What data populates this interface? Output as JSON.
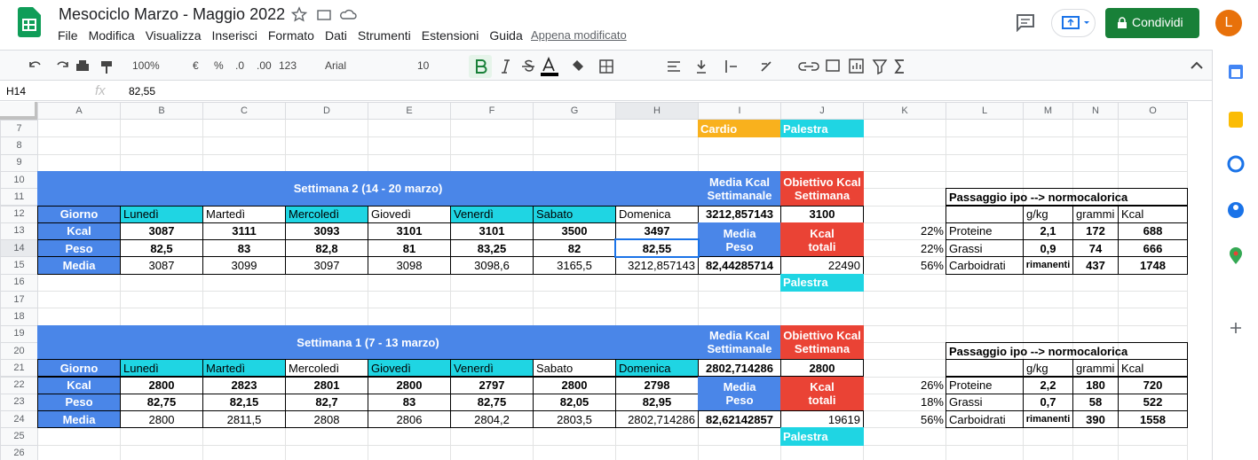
{
  "header": {
    "title": "Mesociclo Marzo - Maggio 2022",
    "menu": [
      "File",
      "Modifica",
      "Visualizza",
      "Inserisci",
      "Formato",
      "Dati",
      "Strumenti",
      "Estensioni",
      "Guida"
    ],
    "status": "Appena modificato",
    "share": "Condividi",
    "avatar": "L"
  },
  "toolbar": {
    "zoom": "100%",
    "currency": "€",
    "percent": "%",
    "decrease_decimals": ".0",
    "increase_decimals": ".00",
    "format": "123",
    "font": "Arial",
    "font_size": "10"
  },
  "formula_bar": {
    "cell": "H14",
    "fx": "fx",
    "value": "82,55"
  },
  "sheet": {
    "columns": [
      "A",
      "B",
      "C",
      "D",
      "E",
      "F",
      "G",
      "H",
      "I",
      "J",
      "K",
      "L",
      "M",
      "N",
      "O"
    ],
    "rows": [
      "7",
      "8",
      "9",
      "10",
      "11",
      "12",
      "13",
      "14",
      "15",
      "16",
      "17",
      "18",
      "19",
      "20",
      "21",
      "22",
      "23",
      "24",
      "25",
      "26"
    ],
    "top_labels": [
      {
        "text": "Cardio",
        "color": "#f9b11d"
      },
      {
        "text": "Palestra",
        "color": "#1fd5e3"
      }
    ],
    "weeks": [
      {
        "title": "Settimana 2 (14 - 20  marzo)",
        "avg_kcal_label": "Media Kcal\nSettimanale",
        "goal_label": "Obiettivo Kcal\nSettimana",
        "day_header": "Giorno",
        "days": [
          "Lunedì",
          "Martedì",
          "Mercoledì",
          "Giovedì",
          "Venerdì",
          "Sabato",
          "Domenica"
        ],
        "highlighted": [
          true,
          false,
          true,
          false,
          true,
          true,
          false
        ],
        "avg_kcal": "3212,857143",
        "goal": "3100",
        "rows": [
          {
            "label": "Kcal",
            "values": [
              "3087",
              "3111",
              "3093",
              "3101",
              "3101",
              "3500",
              "3497"
            ]
          },
          {
            "label": "Peso",
            "values": [
              "82,5",
              "83",
              "82,8",
              "81",
              "83,25",
              "82",
              "82,55"
            ]
          },
          {
            "label": "Media",
            "values": [
              "3087",
              "3099",
              "3097",
              "3098",
              "3098,6",
              "3165,5",
              "3212,857143"
            ]
          }
        ],
        "avg_weight_label": "Media\nPeso",
        "total_label": "Kcal\ntotali",
        "avg_weight": "82,44285714",
        "total": "22490",
        "gym": "Palestra",
        "macro": {
          "title": "Passaggio ipo --> normocalorica",
          "header": [
            "g/kg",
            "grammi",
            "Kcal"
          ],
          "rows": [
            [
              "22%",
              "Proteine",
              "2,1",
              "172",
              "688"
            ],
            [
              "22%",
              "Grassi",
              "0,9",
              "74",
              "666"
            ],
            [
              "56%",
              "Carboidrati",
              "rimanenti",
              "437",
              "1748"
            ]
          ]
        }
      },
      {
        "title": "Settimana 1 (7 - 13  marzo)",
        "avg_kcal_label": "Media Kcal\nSettimanale",
        "goal_label": "Obiettivo Kcal\nSettimana",
        "day_header": "Giorno",
        "days": [
          "Lunedì",
          "Martedì",
          "Mercoledì",
          "Giovedì",
          "Venerdì",
          "Sabato",
          "Domenica"
        ],
        "highlighted": [
          true,
          true,
          false,
          true,
          true,
          false,
          true
        ],
        "avg_kcal": "2802,714286",
        "goal": "2800",
        "rows": [
          {
            "label": "Kcal",
            "values": [
              "2800",
              "2823",
              "2801",
              "2800",
              "2797",
              "2800",
              "2798"
            ]
          },
          {
            "label": "Peso",
            "values": [
              "82,75",
              "82,15",
              "82,7",
              "83",
              "82,75",
              "82,05",
              "82,95"
            ]
          },
          {
            "label": "Media",
            "values": [
              "2800",
              "2811,5",
              "2808",
              "2806",
              "2804,2",
              "2803,5",
              "2802,714286"
            ]
          }
        ],
        "avg_weight_label": "Media\nPeso",
        "total_label": "Kcal\ntotali",
        "avg_weight": "82,62142857",
        "total": "19619",
        "gym": "Palestra",
        "macro": {
          "title": "Passaggio ipo --> normocalorica",
          "header": [
            "g/kg",
            "grammi",
            "Kcal"
          ],
          "rows": [
            [
              "26%",
              "Proteine",
              "2,2",
              "180",
              "720"
            ],
            [
              "18%",
              "Grassi",
              "0,7",
              "58",
              "522"
            ],
            [
              "56%",
              "Carboidrati",
              "rimanenti",
              "390",
              "1558"
            ]
          ]
        }
      }
    ]
  }
}
